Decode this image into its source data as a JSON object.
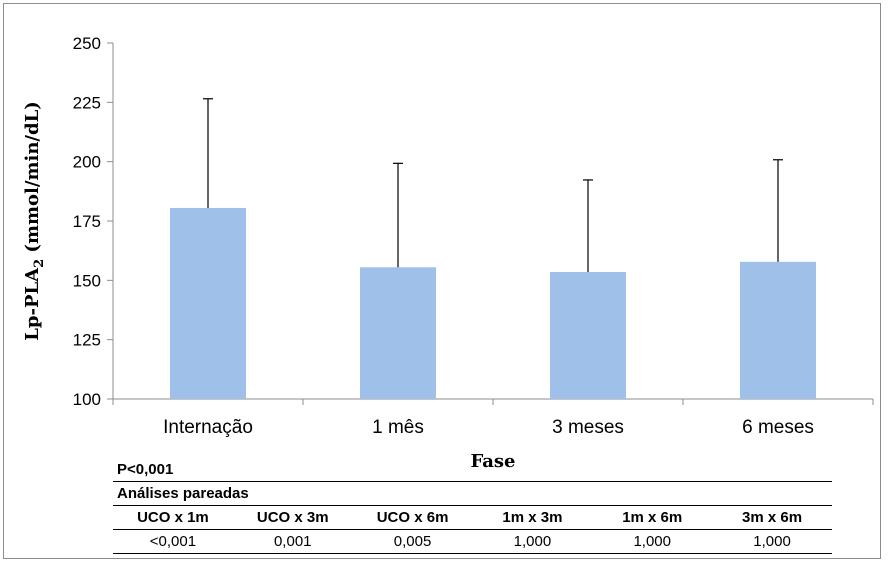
{
  "chart_data": {
    "type": "bar",
    "categories": [
      "Internação",
      "1 mês",
      "3 meses",
      "6 meses"
    ],
    "values": [
      180.5,
      155.5,
      153.5,
      157.8
    ],
    "error_upper": [
      226.5,
      199.3,
      192.3,
      200.8
    ],
    "ylim": [
      100,
      250
    ],
    "yticks": [
      100,
      125,
      150,
      175,
      200,
      225,
      250
    ],
    "xlabel": "Fase",
    "ylabel": "Lp-PLA",
    "ylabel_subscript": "2",
    "ylabel_unit": "(mmol/min/dL)",
    "bar_color": "#9fc0e8",
    "grid": false
  },
  "stats_table": {
    "p_value": "P<0,001",
    "title": "Análises pareadas",
    "columns": [
      "UCO x 1m",
      "UCO x 3m",
      "UCO x 6m",
      "1m x 3m",
      "1m x 6m",
      "3m x 6m"
    ],
    "values": [
      "<0,001",
      "0,001",
      "0,005",
      "1,000",
      "1,000",
      "1,000"
    ]
  }
}
